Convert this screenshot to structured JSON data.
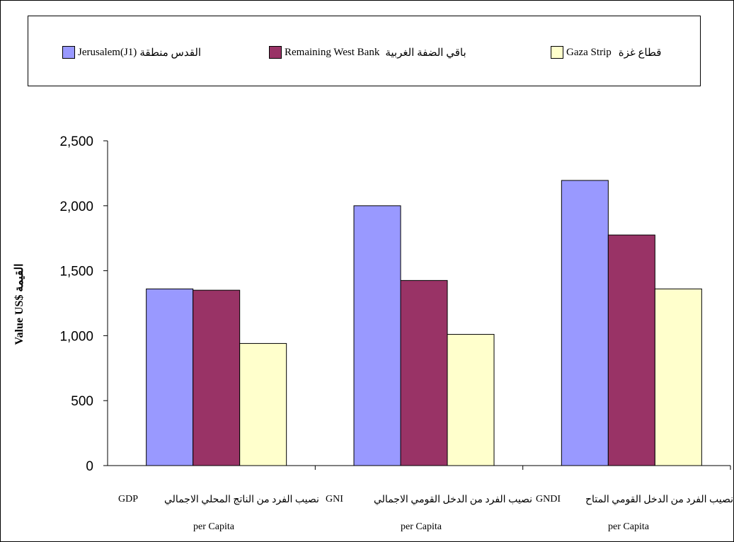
{
  "chart_data": {
    "type": "bar",
    "ylabel": "Value US$ القيمة",
    "ylim": [
      0,
      2500
    ],
    "yticks": [
      0,
      500,
      1000,
      1500,
      2000,
      2500
    ],
    "ytick_labels": [
      "0",
      "500",
      "1,000",
      "1,500",
      "2,000",
      "2,500"
    ],
    "grid": false,
    "legend_position": "top",
    "categories": [
      {
        "code": "GDP",
        "arabic": "نصيب الفرد من الناتج المحلي الاجمالي",
        "sub": "per Capita"
      },
      {
        "code": "GNI",
        "arabic": "نصيب الفرد من الدخل القومي الاجمالي",
        "sub": "per Capita"
      },
      {
        "code": "GNDI",
        "arabic": "نصيب الفرد من الدخل القومي المتاح",
        "sub": "per Capita"
      }
    ],
    "series": [
      {
        "name": "Jerusalem(J1) القدس منطقة",
        "legend_en": "Jerusalem(J1)",
        "legend_ar": "القدس منطقة",
        "color": "#9999ff",
        "values": [
          1360,
          2000,
          2195
        ]
      },
      {
        "name": "Remaining West Bank باقي الضفة الغربية",
        "legend_en": "Remaining West Bank",
        "legend_ar": "باقي الضفة الغربية",
        "color": "#993366",
        "values": [
          1350,
          1425,
          1775
        ]
      },
      {
        "name": "Gaza Strip قطاع غزة",
        "legend_en": "Gaza Strip",
        "legend_ar": "قطاع غزة",
        "color": "#ffffcc",
        "values": [
          940,
          1010,
          1360
        ]
      }
    ]
  }
}
